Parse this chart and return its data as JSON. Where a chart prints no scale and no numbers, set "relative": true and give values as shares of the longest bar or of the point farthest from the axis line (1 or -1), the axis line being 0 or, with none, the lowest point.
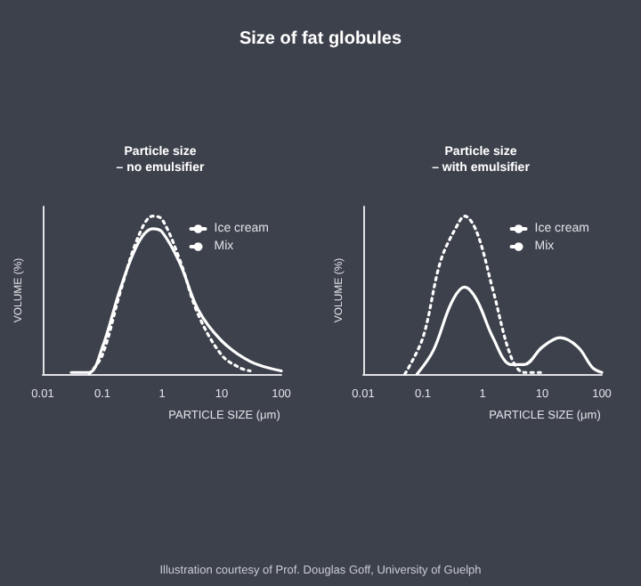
{
  "chart_data": [
    {
      "type": "other",
      "title": "Size of fat globules"
    },
    {
      "type": "line",
      "title": "Particle size\n– no emulsifier",
      "xlabel": "PARTICLE SIZE (μm)",
      "ylabel": "VOLUME (%)",
      "relative": true,
      "log": "x",
      "xlim": [
        0.01,
        100
      ],
      "xticks": [
        0.01,
        0.1,
        1,
        10,
        100
      ],
      "grid": false,
      "legend": "top right",
      "marker": "none",
      "series": [
        {
          "name": "Ice cream",
          "color": "#ffffff",
          "line_style": "solid",
          "x": [
            0.03,
            0.06,
            0.1,
            0.2,
            0.4,
            0.7,
            1,
            2,
            4,
            10,
            30,
            100
          ],
          "values": [
            0.01,
            0.01,
            0.17,
            0.54,
            0.83,
            0.92,
            0.9,
            0.7,
            0.41,
            0.21,
            0.08,
            0.02
          ]
        },
        {
          "name": "Mix",
          "color": "#ffffff",
          "line_style": "dotted",
          "x": [
            0.06,
            0.1,
            0.2,
            0.4,
            0.7,
            1,
            2,
            4,
            10,
            20,
            30
          ],
          "values": [
            0,
            0.12,
            0.52,
            0.87,
            1,
            0.98,
            0.72,
            0.38,
            0.12,
            0.04,
            0.02
          ]
        }
      ]
    },
    {
      "type": "line",
      "title": "Particle size\n– with emulsifier",
      "xlabel": "PARTICLE SIZE (μm)",
      "ylabel": "VOLUME (%)",
      "relative": true,
      "log": "x",
      "xlim": [
        0.01,
        100
      ],
      "xticks": [
        0.01,
        0.1,
        1,
        10,
        100
      ],
      "grid": false,
      "legend": "top right",
      "marker": "none",
      "series": [
        {
          "name": "Ice cream",
          "color": "#ffffff",
          "line_style": "solid",
          "x": [
            0.08,
            0.15,
            0.3,
            0.5,
            0.8,
            1.5,
            3,
            5,
            10,
            20,
            40,
            70,
            100
          ],
          "values": [
            0,
            0.15,
            0.45,
            0.55,
            0.47,
            0.23,
            0.06,
            0.06,
            0.17,
            0.23,
            0.17,
            0.04,
            0.01
          ]
        },
        {
          "name": "Mix",
          "color": "#ffffff",
          "line_style": "dotted",
          "x": [
            0.05,
            0.1,
            0.2,
            0.4,
            0.5,
            0.8,
            1.5,
            3,
            5,
            10
          ],
          "values": [
            0,
            0.23,
            0.72,
            0.96,
            1,
            0.9,
            0.53,
            0.11,
            0.01,
            0.01
          ]
        }
      ]
    },
    {
      "type": "other",
      "annotations": [
        "Illustration courtesy of Prof. Douglas Goff, University of Guelph"
      ]
    }
  ]
}
